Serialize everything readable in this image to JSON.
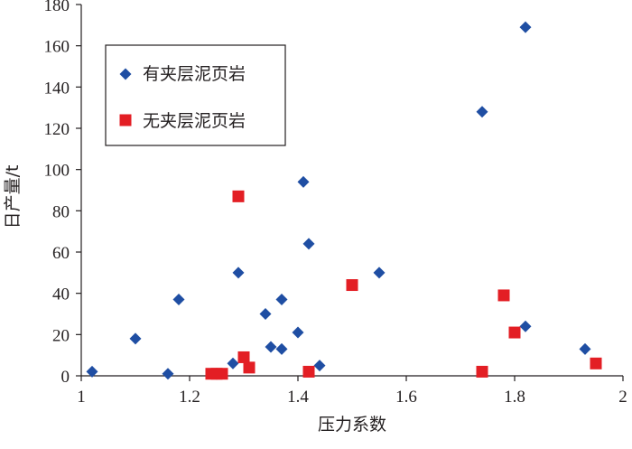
{
  "chart_data": {
    "type": "scatter",
    "title": "",
    "xlabel": "压力系数",
    "ylabel": "日产量/t",
    "xlim": [
      1,
      2
    ],
    "ylim": [
      0,
      180
    ],
    "x_ticks": [
      1,
      1.2,
      1.4,
      1.6,
      1.8,
      2
    ],
    "x_tick_labels": [
      "1",
      "1.2",
      "1.4",
      "1.6",
      "1.8",
      "2"
    ],
    "y_ticks": [
      0,
      20,
      40,
      60,
      80,
      100,
      120,
      140,
      160,
      180
    ],
    "y_tick_labels": [
      "0",
      "20",
      "40",
      "60",
      "80",
      "100",
      "120",
      "140",
      "160",
      "180"
    ],
    "grid": false,
    "legend": "top-left",
    "series": [
      {
        "name": "有夹层泥页岩",
        "marker": "diamond",
        "color": "#1f4ea3",
        "points": [
          [
            1.02,
            2
          ],
          [
            1.1,
            18
          ],
          [
            1.16,
            1
          ],
          [
            1.18,
            37
          ],
          [
            1.28,
            6
          ],
          [
            1.29,
            50
          ],
          [
            1.34,
            30
          ],
          [
            1.35,
            14
          ],
          [
            1.37,
            37
          ],
          [
            1.37,
            13
          ],
          [
            1.4,
            21
          ],
          [
            1.41,
            94
          ],
          [
            1.42,
            64
          ],
          [
            1.44,
            5
          ],
          [
            1.55,
            50
          ],
          [
            1.74,
            128
          ],
          [
            1.82,
            169
          ],
          [
            1.82,
            24
          ],
          [
            1.93,
            13
          ]
        ]
      },
      {
        "name": "无夹层泥页岩",
        "marker": "square",
        "color": "#e31e24",
        "points": [
          [
            1.24,
            1
          ],
          [
            1.25,
            1
          ],
          [
            1.26,
            1
          ],
          [
            1.29,
            87
          ],
          [
            1.3,
            9
          ],
          [
            1.31,
            4
          ],
          [
            1.42,
            2
          ],
          [
            1.5,
            44
          ],
          [
            1.74,
            2
          ],
          [
            1.78,
            39
          ],
          [
            1.8,
            21
          ],
          [
            1.95,
            6
          ]
        ]
      }
    ]
  }
}
